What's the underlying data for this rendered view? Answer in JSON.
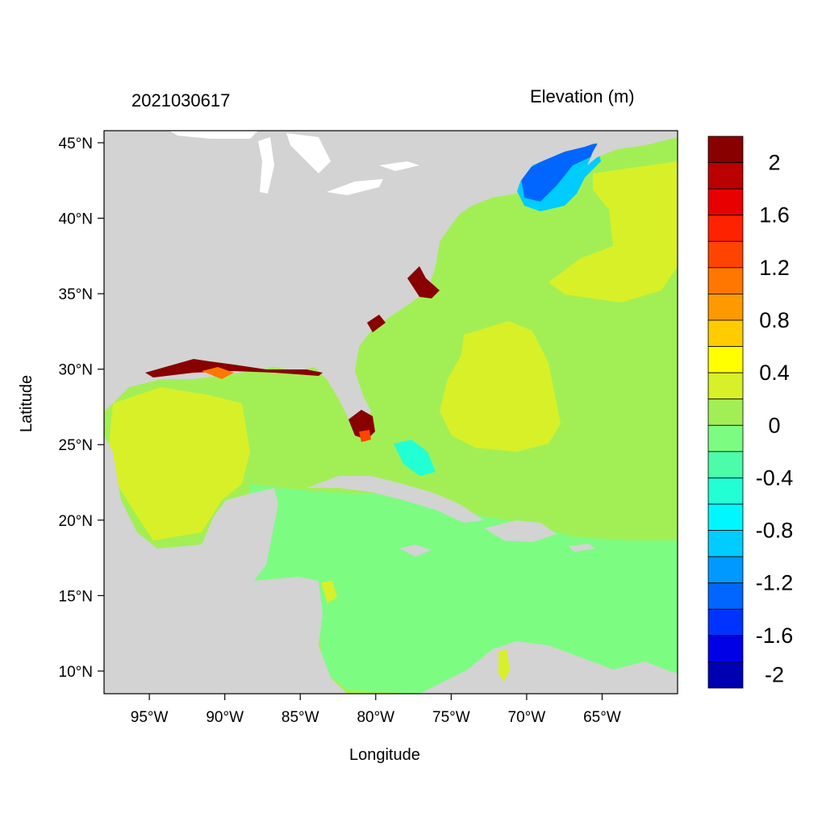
{
  "date_label": "2021030617",
  "variable_label": "Elevation (m)",
  "axes": {
    "xlabel": "Longitude",
    "ylabel": "Latitude",
    "xticks": [
      {
        "lon": -95,
        "label": "95°W"
      },
      {
        "lon": -90,
        "label": "90°W"
      },
      {
        "lon": -85,
        "label": "85°W"
      },
      {
        "lon": -80,
        "label": "80°W"
      },
      {
        "lon": -75,
        "label": "75°W"
      },
      {
        "lon": -70,
        "label": "70°W"
      },
      {
        "lon": -65,
        "label": "65°W"
      }
    ],
    "yticks": [
      {
        "lat": 45,
        "label": "45°N"
      },
      {
        "lat": 40,
        "label": "40°N"
      },
      {
        "lat": 35,
        "label": "35°N"
      },
      {
        "lat": 30,
        "label": "30°N"
      },
      {
        "lat": 25,
        "label": "25°N"
      },
      {
        "lat": 20,
        "label": "20°N"
      },
      {
        "lat": 15,
        "label": "15°N"
      },
      {
        "lat": 10,
        "label": "10°N"
      }
    ],
    "lon_range": [
      -98,
      -60
    ],
    "lat_range": [
      8.5,
      45.8
    ]
  },
  "colorbar": {
    "colors": [
      "#880000",
      "#bb0000",
      "#e60000",
      "#ff2200",
      "#ff4400",
      "#ff7700",
      "#ff9900",
      "#ffcc00",
      "#ffff00",
      "#d8f028",
      "#a2ef55",
      "#7dfc82",
      "#4dfca8",
      "#22ffd4",
      "#00f7ff",
      "#00ccff",
      "#0099ff",
      "#0066ff",
      "#0033ff",
      "#0000e6",
      "#0000b3"
    ],
    "labels": [
      {
        "index": 1,
        "text": "2"
      },
      {
        "index": 3,
        "text": "1.6"
      },
      {
        "index": 5,
        "text": "1.2"
      },
      {
        "index": 7,
        "text": "0.8"
      },
      {
        "index": 9,
        "text": "0.4"
      },
      {
        "index": 11,
        "text": "0"
      },
      {
        "index": 13,
        "text": "-0.4"
      },
      {
        "index": 15,
        "text": "-0.8"
      },
      {
        "index": 17,
        "text": "-1.2"
      },
      {
        "index": 19,
        "text": "-1.6"
      },
      {
        "index": 21,
        "text": "-2"
      }
    ]
  },
  "colors": {
    "land": "#d3d3d3",
    "lake": "#ffffff",
    "ocean_default": "#a2ef55",
    "caribbean": "#7dfc82",
    "positive_anomaly": "#d8f028",
    "negative_gulf_of_maine": "#0066ff"
  }
}
